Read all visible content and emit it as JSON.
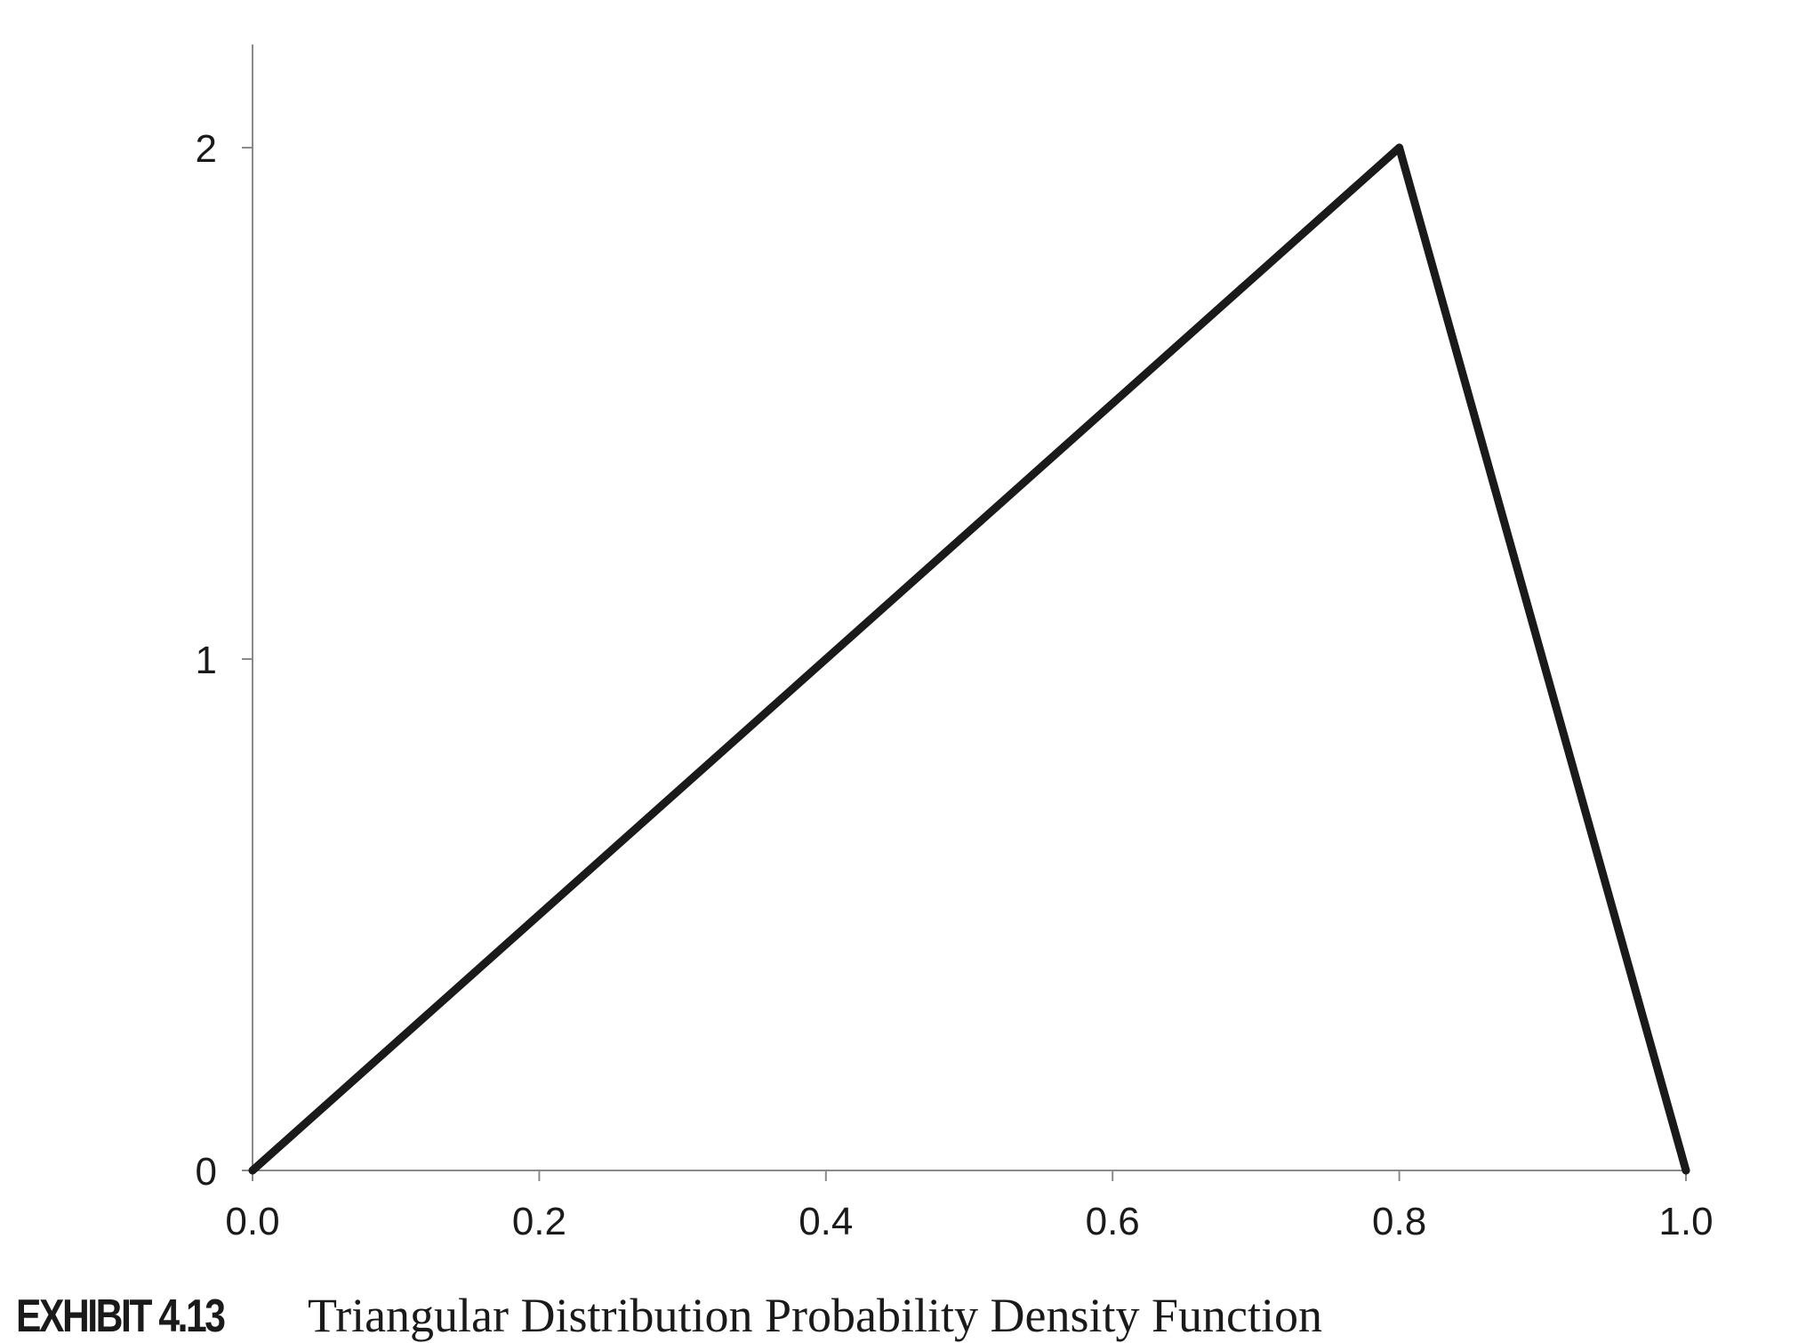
{
  "caption": {
    "label": "EXHIBIT 4.13",
    "title": "Triangular Distribution Probability Density Function"
  },
  "chart_data": {
    "type": "line",
    "title": "Triangular Distribution Probability Density Function",
    "xlabel": "",
    "ylabel": "",
    "xlim": [
      0,
      1
    ],
    "ylim": [
      0,
      2.2
    ],
    "x_ticks": [
      "0.0",
      "0.2",
      "0.4",
      "0.6",
      "0.8",
      "1.0"
    ],
    "y_ticks": [
      "0",
      "1",
      "2"
    ],
    "grid": false,
    "legend": "none",
    "series": [
      {
        "x": [
          0.0,
          0.8,
          1.0
        ],
        "y": [
          0,
          2,
          0
        ],
        "color": "#1a1a1a"
      }
    ],
    "axis_color": "#8a8a8a"
  }
}
